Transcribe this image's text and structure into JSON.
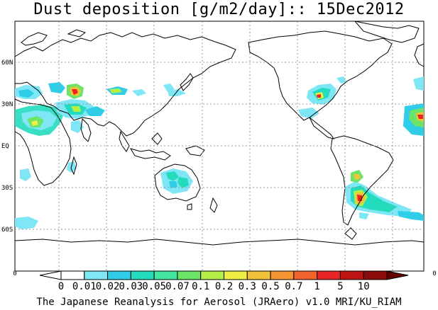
{
  "title": "Dust deposition [g/m2/day]:: 15Dec2012",
  "footer": "The Japanese Reanalysis for Aerosol (JRAero) v1.0 MRI/KU_RIAM",
  "lat_labels": [
    "60N",
    "30N",
    "EQ",
    "30S",
    "60S"
  ],
  "colorbar": {
    "end_left": "0",
    "end_right": "0",
    "labels": [
      "0",
      "0.01",
      "0.02",
      "0.03",
      "0.05",
      "0.07",
      "0.1",
      "0.2",
      "0.3",
      "0.5",
      "0.7",
      "1",
      "5",
      "10"
    ],
    "colors": [
      "#ffffff",
      "#ffffff",
      "#7ee6f5",
      "#2fcde8",
      "#23dcbe",
      "#44e6a0",
      "#6ce468",
      "#b5ee46",
      "#eeee44",
      "#f2c23a",
      "#f59632",
      "#f2622c",
      "#e82424",
      "#be1414",
      "#8c0c0c",
      "#640000"
    ]
  }
}
